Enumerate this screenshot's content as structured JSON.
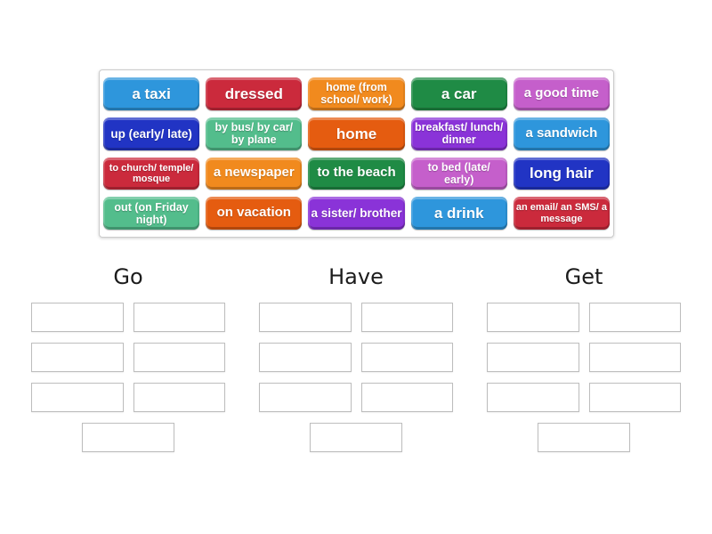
{
  "board": {
    "tiles": [
      {
        "label": "a taxi",
        "color": "#2e96dc"
      },
      {
        "label": "dressed",
        "color": "#cb2a3c"
      },
      {
        "label": "home (from school/ work)",
        "color": "#f18a1e"
      },
      {
        "label": "a car",
        "color": "#1f8b45"
      },
      {
        "label": "a good time",
        "color": "#c55fcb"
      },
      {
        "label": "up (early/ late)",
        "color": "#2134c4"
      },
      {
        "label": "by bus/ by car/ by plane",
        "color": "#53bd8c"
      },
      {
        "label": "home",
        "color": "#e55c10"
      },
      {
        "label": "breakfast/ lunch/ dinner",
        "color": "#8a33d8"
      },
      {
        "label": "a sandwich",
        "color": "#2e96dc"
      },
      {
        "label": "to church/ temple/ mosque",
        "color": "#cb2a3c"
      },
      {
        "label": "a newspaper",
        "color": "#f18a1e"
      },
      {
        "label": "to the beach",
        "color": "#1f8b45"
      },
      {
        "label": "to bed (late/ early)",
        "color": "#c55fcb"
      },
      {
        "label": "long hair",
        "color": "#2134c4"
      },
      {
        "label": "out (on Friday night)",
        "color": "#53bd8c"
      },
      {
        "label": "on vacation",
        "color": "#e55c10"
      },
      {
        "label": "a sister/ brother",
        "color": "#8a33d8"
      },
      {
        "label": "a drink",
        "color": "#2e96dc"
      },
      {
        "label": "an email/ an SMS/ a message",
        "color": "#cb2a3c"
      }
    ]
  },
  "groups": [
    {
      "title": "Go",
      "slots": 7
    },
    {
      "title": "Have",
      "slots": 7
    },
    {
      "title": "Get",
      "slots": 7
    }
  ]
}
